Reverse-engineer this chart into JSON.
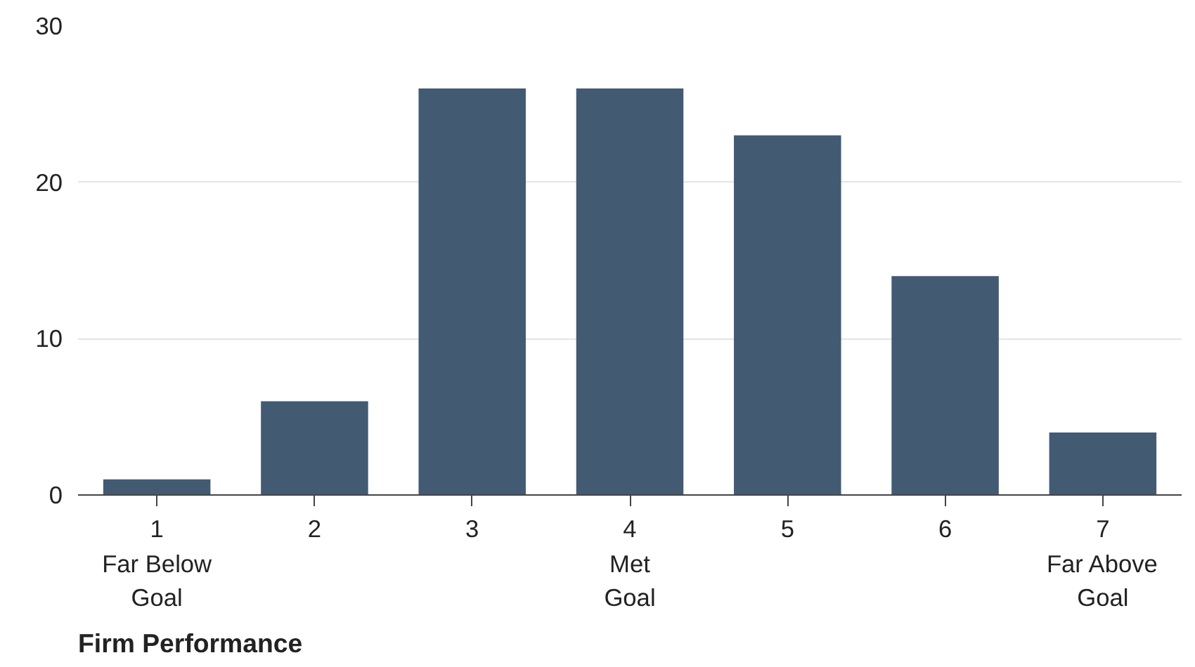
{
  "chart_data": {
    "type": "bar",
    "categories": [
      "1",
      "2",
      "3",
      "4",
      "5",
      "6",
      "7"
    ],
    "values": [
      1,
      6,
      26,
      26,
      23,
      14,
      4
    ],
    "color": "#435a73",
    "ylim": [
      0,
      30
    ],
    "yticks": [
      0,
      10,
      20,
      30
    ],
    "grid": "y",
    "xlabel": "Firm Performance",
    "annotations": [
      "Far Below Goal",
      "Met Goal",
      "Far Above Goal"
    ]
  }
}
